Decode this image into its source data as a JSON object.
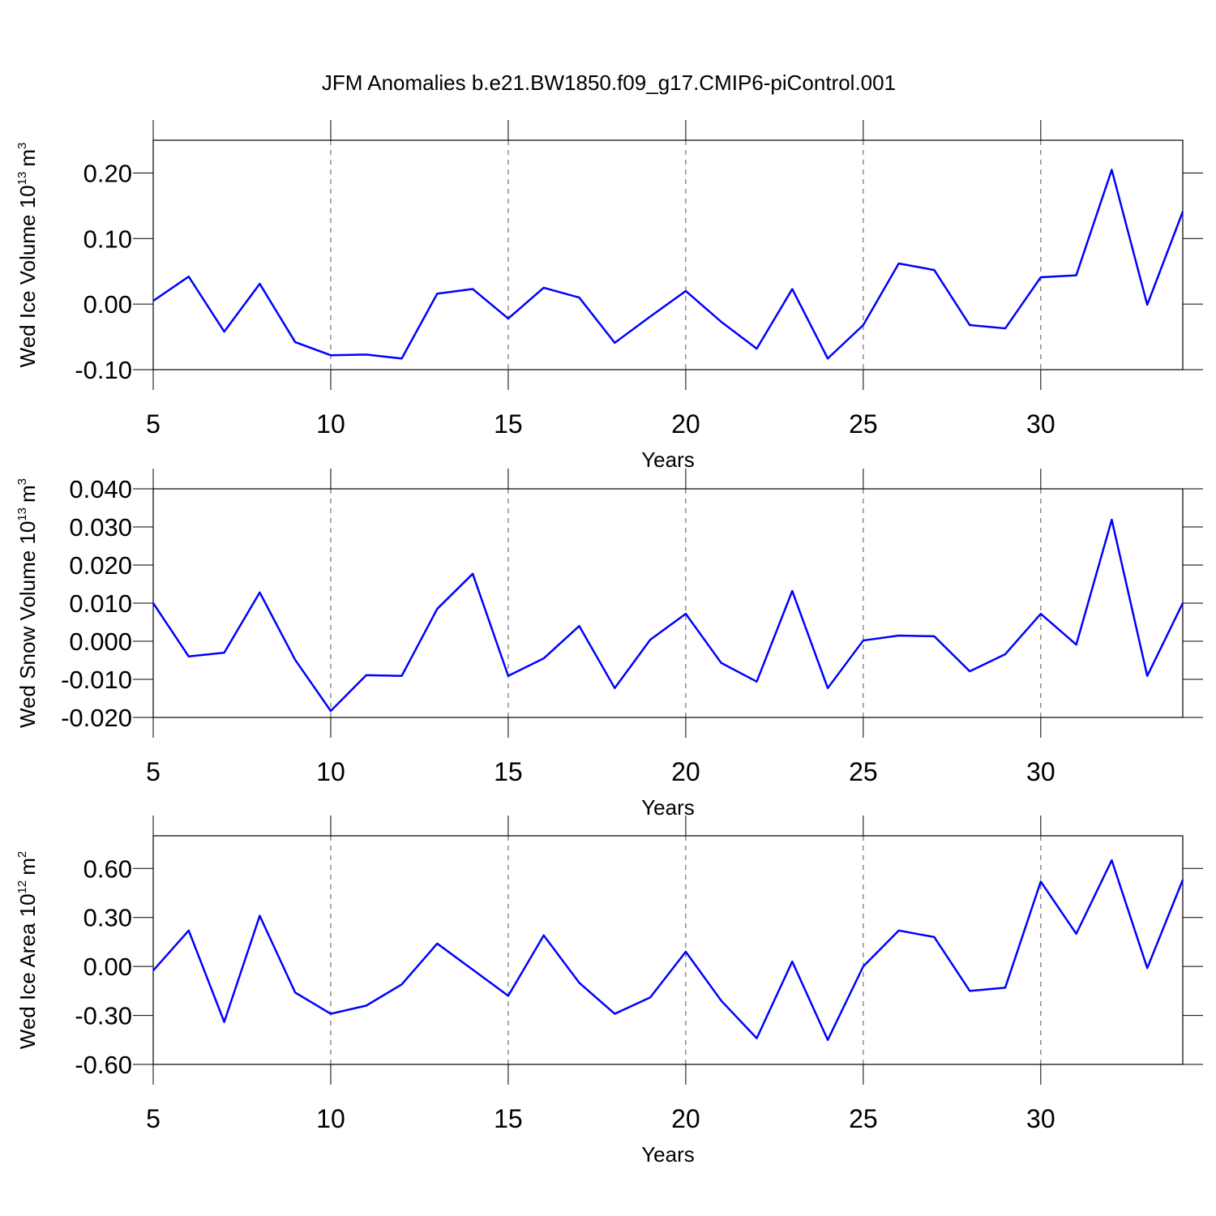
{
  "chart_data": [
    {
      "type": "line",
      "title": "JFM Anomalies b.e21.BW1850.f09_g17.CMIP6-piControl.001",
      "xlabel": "Years",
      "ylabel": {
        "text": "Wed Ice Volume 10",
        "exponent": "13",
        "unit": "m",
        "unit_exponent": "3"
      },
      "x": [
        5,
        6,
        7,
        8,
        9,
        10,
        11,
        12,
        13,
        14,
        15,
        16,
        17,
        18,
        19,
        20,
        21,
        22,
        23,
        24,
        25,
        26,
        27,
        28,
        29,
        30,
        31,
        32,
        33,
        34
      ],
      "values": [
        0.005,
        0.042,
        -0.042,
        0.031,
        -0.058,
        -0.078,
        -0.077,
        -0.083,
        0.016,
        0.023,
        -0.022,
        0.025,
        0.01,
        -0.059,
        -0.019,
        0.02,
        -0.027,
        -0.068,
        0.023,
        -0.083,
        -0.032,
        0.062,
        0.052,
        -0.032,
        -0.037,
        0.041,
        0.044,
        0.205,
        -0.001,
        0.141
      ],
      "color": "#0000ff",
      "xlim": [
        5,
        34
      ],
      "xticks": [
        5,
        10,
        15,
        20,
        25,
        30
      ],
      "ylim": [
        -0.1,
        0.25
      ],
      "yticks": [
        {
          "value": -0.1,
          "label": "-0.10"
        },
        {
          "value": 0,
          "label": "0.00"
        },
        {
          "value": 0.1,
          "label": "0.10"
        },
        {
          "value": 0.2,
          "label": "0.20"
        }
      ],
      "xgrid": true
    },
    {
      "type": "line",
      "xlabel": "Years",
      "ylabel": {
        "text": "Wed Snow Volume 10",
        "exponent": "13",
        "unit": "m",
        "unit_exponent": "3"
      },
      "x": [
        5,
        6,
        7,
        8,
        9,
        10,
        11,
        12,
        13,
        14,
        15,
        16,
        17,
        18,
        19,
        20,
        21,
        22,
        23,
        24,
        25,
        26,
        27,
        28,
        29,
        30,
        31,
        32,
        33,
        34
      ],
      "values": [
        0.01,
        -0.004,
        -0.003,
        0.0128,
        -0.0049,
        -0.0183,
        -0.0089,
        -0.0091,
        0.0085,
        0.0177,
        -0.0091,
        -0.0045,
        0.004,
        -0.0123,
        0.0004,
        0.0072,
        -0.0057,
        -0.0106,
        0.0132,
        -0.0123,
        0.0002,
        0.0015,
        0.0013,
        -0.0079,
        -0.0034,
        0.0072,
        -0.0009,
        0.0319,
        -0.0091,
        0.01
      ],
      "color": "#0000ff",
      "xlim": [
        5,
        34
      ],
      "xticks": [
        5,
        10,
        15,
        20,
        25,
        30
      ],
      "ylim": [
        -0.02,
        0.04
      ],
      "yticks": [
        {
          "value": -0.02,
          "label": "-0.020"
        },
        {
          "value": -0.01,
          "label": "-0.010"
        },
        {
          "value": 0,
          "label": "0.000"
        },
        {
          "value": 0.01,
          "label": "0.010"
        },
        {
          "value": 0.02,
          "label": "0.020"
        },
        {
          "value": 0.03,
          "label": "0.030"
        },
        {
          "value": 0.04,
          "label": "0.040"
        }
      ],
      "xgrid": true
    },
    {
      "type": "line",
      "xlabel": "Years",
      "ylabel": {
        "text": "Wed Ice Area 10",
        "exponent": "12",
        "unit": "m",
        "unit_exponent": "2"
      },
      "x": [
        5,
        6,
        7,
        8,
        9,
        10,
        11,
        12,
        13,
        14,
        15,
        16,
        17,
        18,
        19,
        20,
        21,
        22,
        23,
        24,
        25,
        26,
        27,
        28,
        29,
        30,
        31,
        32,
        33,
        34
      ],
      "values": [
        -0.025,
        0.22,
        -0.34,
        0.31,
        -0.16,
        -0.29,
        -0.24,
        -0.11,
        0.14,
        -0.02,
        -0.18,
        0.19,
        -0.1,
        -0.29,
        -0.19,
        0.09,
        -0.21,
        -0.44,
        0.03,
        -0.45,
        0.0,
        0.22,
        0.18,
        -0.15,
        -0.13,
        0.52,
        0.2,
        0.65,
        -0.01,
        0.53
      ],
      "color": "#0000ff",
      "xlim": [
        5,
        34
      ],
      "xticks": [
        5,
        10,
        15,
        20,
        25,
        30
      ],
      "ylim": [
        -0.6,
        0.8
      ],
      "yticks": [
        {
          "value": -0.6,
          "label": "-0.60"
        },
        {
          "value": -0.3,
          "label": "-0.30"
        },
        {
          "value": 0,
          "label": "0.00"
        },
        {
          "value": 0.3,
          "label": "0.30"
        },
        {
          "value": 0.6,
          "label": "0.60"
        }
      ],
      "xgrid": true
    }
  ]
}
